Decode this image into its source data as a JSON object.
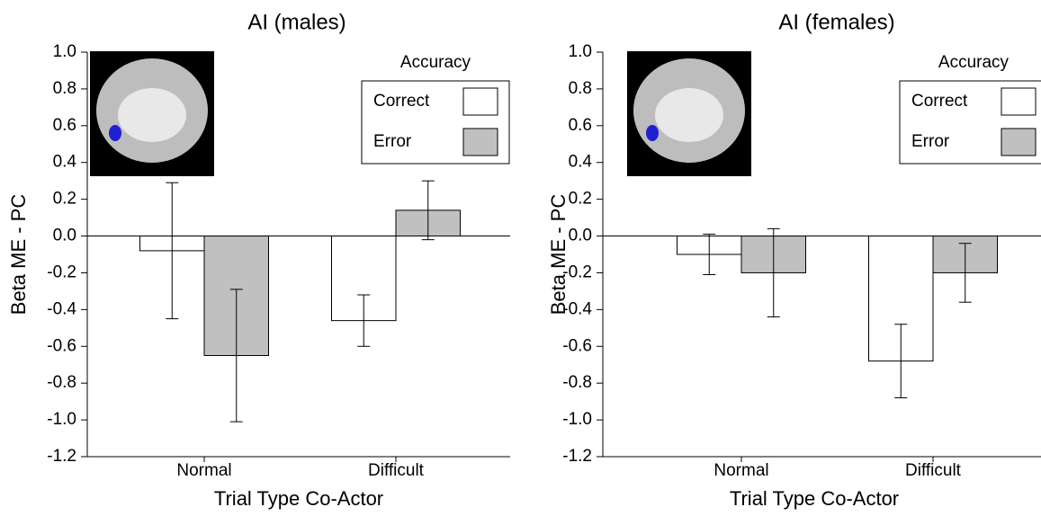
{
  "chart_data": [
    {
      "type": "bar",
      "title": "AI (males)",
      "x_label": "Trial Type Co-Actor",
      "y_label": "Beta ME - PC",
      "categories": [
        "Normal",
        "Difficult"
      ],
      "series": [
        {
          "name": "Correct",
          "color": "#ffffff",
          "values": [
            -0.08,
            -0.46
          ],
          "errors": [
            0.37,
            0.14
          ]
        },
        {
          "name": "Error",
          "color": "#c0c0c0",
          "values": [
            -0.65,
            0.14
          ],
          "errors": [
            0.36,
            0.16
          ]
        }
      ],
      "legend_title": "Accuracy",
      "legend": "upper right",
      "grid": false,
      "ylim": [
        -1.2,
        1.0
      ],
      "yticks": [
        -1.2,
        {
          "value": -1.0,
          "label": "-1.0"
        },
        -0.8,
        -0.6,
        -0.4,
        -0.2,
        {
          "value": 0,
          "label": "0.0"
        },
        0.2,
        0.4,
        0.6,
        0.8,
        {
          "value": 1.0,
          "label": "1.0"
        }
      ]
    },
    {
      "type": "bar",
      "title": "AI (females)",
      "x_label": "Trial Type Co-Actor",
      "y_label": "Beta ME - PC",
      "categories": [
        "Normal",
        "Difficult"
      ],
      "series": [
        {
          "name": "Correct",
          "color": "#ffffff",
          "values": [
            -0.1,
            -0.68
          ],
          "errors": [
            0.11,
            0.2
          ]
        },
        {
          "name": "Error",
          "color": "#c0c0c0",
          "values": [
            -0.2,
            -0.2
          ],
          "errors": [
            0.24,
            0.16
          ]
        }
      ],
      "legend_title": "Accuracy",
      "legend": "upper right",
      "grid": false,
      "ylim": [
        -1.2,
        1.0
      ],
      "yticks": [
        -1.2,
        {
          "value": -1.0,
          "label": "-1.0"
        },
        -0.8,
        -0.6,
        -0.4,
        -0.2,
        {
          "value": 0,
          "label": "0.0"
        },
        0.2,
        0.4,
        0.6,
        0.8,
        {
          "value": 1.0,
          "label": "1.0"
        }
      ]
    }
  ]
}
